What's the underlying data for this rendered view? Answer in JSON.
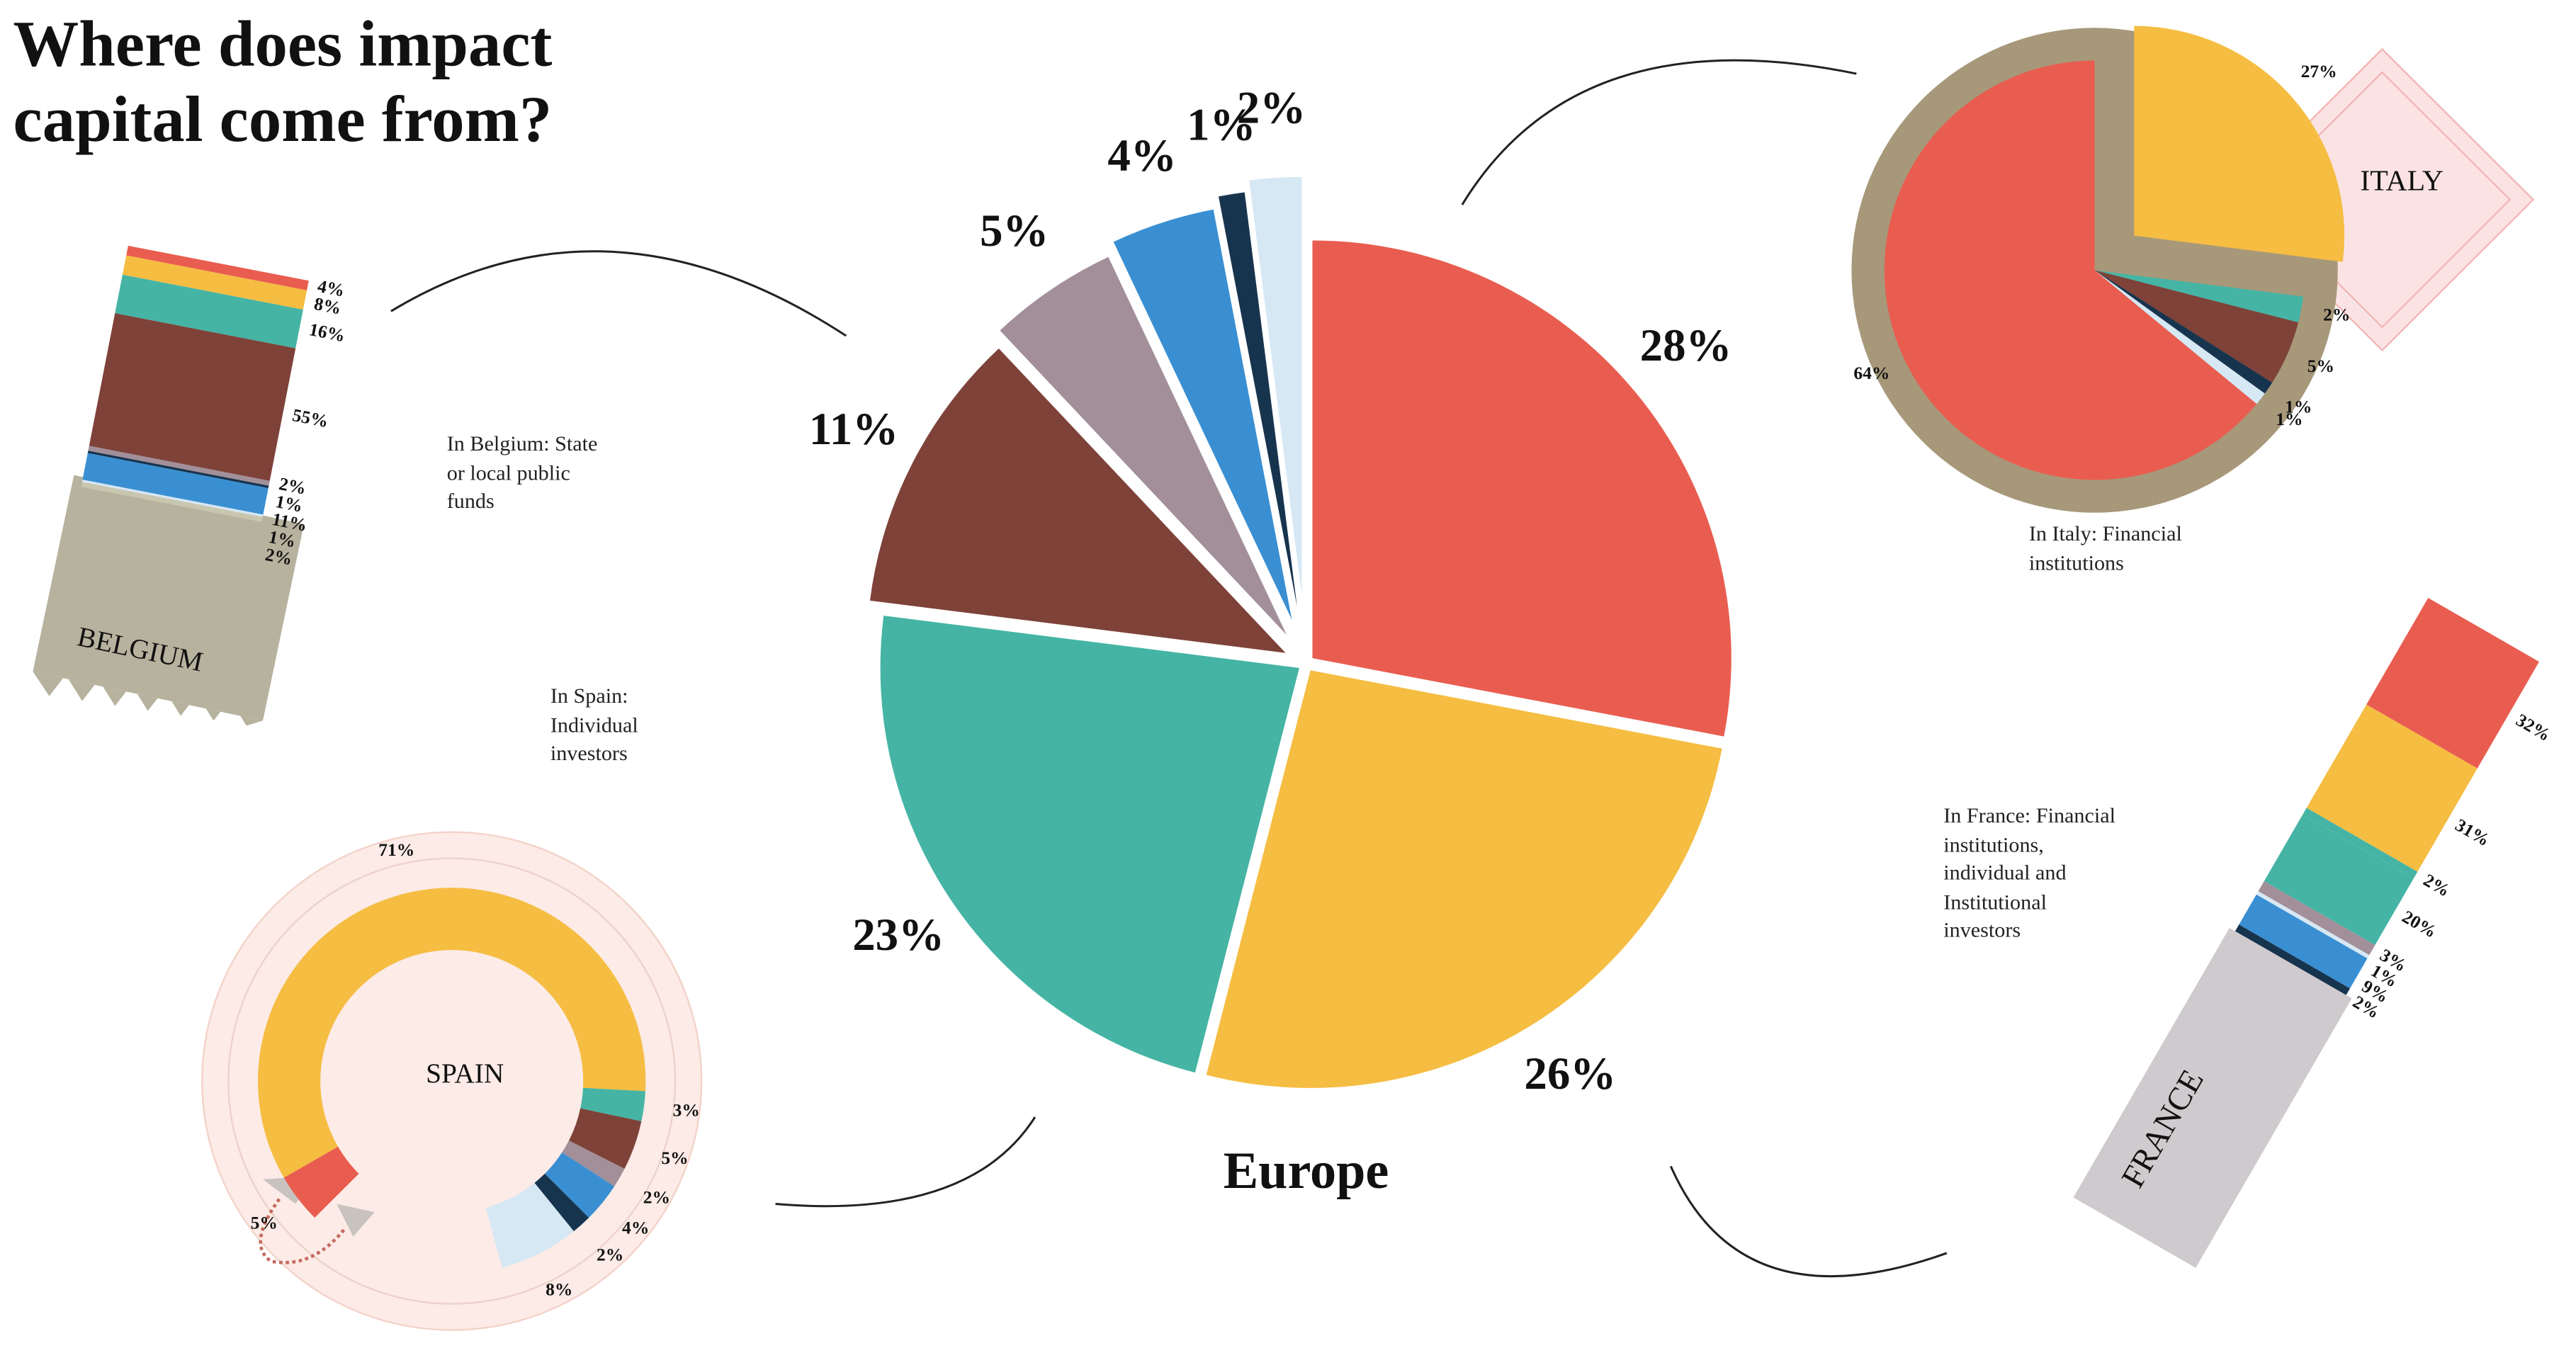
{
  "title": "Where does impact capital come from?",
  "chart_data": [
    {
      "type": "pie",
      "title": "Europe",
      "values": [
        28,
        26,
        23,
        11,
        5,
        4,
        1,
        2
      ],
      "value_labels": [
        "28%",
        "26%",
        "23%",
        "11%",
        "5%",
        "4%",
        "1%",
        "2%"
      ],
      "colors": [
        "#e95d50",
        "#f5bd42",
        "#45b4a4",
        "#7e4239",
        "#a28f99",
        "#3a8fd2",
        "#17344f",
        "#d6e8f4"
      ]
    },
    {
      "type": "stacked-bar",
      "title": "BELGIUM",
      "annotation": "In Belgium: State or local public funds",
      "values": [
        4,
        8,
        16,
        55,
        2,
        1,
        11,
        1,
        2
      ],
      "value_labels": [
        "4%",
        "8%",
        "16%",
        "55%",
        "2%",
        "1%",
        "11%",
        "1%",
        "2%"
      ],
      "colors": [
        "#e95d50",
        "#f5bd42",
        "#45b4a4",
        "#7e4239",
        "#a28f99",
        "#17344f",
        "#3a8fd2",
        "#d6e8f4",
        "#c9c6b0"
      ]
    },
    {
      "type": "pie",
      "title": "ITALY",
      "annotation": "In Italy: Financial institutions",
      "values": [
        64,
        27,
        2,
        5,
        1,
        1
      ],
      "value_labels": [
        "64%",
        "27%",
        "2%",
        "5%",
        "1%",
        "1%"
      ],
      "colors": [
        "#e95d50",
        "#f5bd42",
        "#45b4a4",
        "#7e4239",
        "#17344f",
        "#d6e8f4"
      ]
    },
    {
      "type": "donut",
      "title": "SPAIN",
      "annotation": "In Spain: Individual investors",
      "values": [
        5,
        71,
        3,
        5,
        2,
        4,
        2,
        8
      ],
      "value_labels": [
        "5%",
        "71%",
        "3%",
        "5%",
        "2%",
        "4%",
        "2%",
        "8%"
      ],
      "colors": [
        "#e95d50",
        "#f5bd42",
        "#45b4a4",
        "#7e4239",
        "#a28f99",
        "#3a8fd2",
        "#17344f",
        "#d6e8f4"
      ]
    },
    {
      "type": "stacked-bar",
      "title": "FRANCE",
      "annotation": "In France: Financial institutions, individual and Institutional investors",
      "values": [
        32,
        31,
        2,
        20,
        3,
        1,
        9,
        2
      ],
      "value_labels": [
        "32%",
        "31%",
        "2%",
        "20%",
        "3%",
        "1%",
        "9%",
        "2%"
      ],
      "colors": [
        "#e95d50",
        "#f5bd42",
        "#45b4a4",
        "#45b4a4",
        "#a28f99",
        "#d6e8f4",
        "#3a8fd2",
        "#17344f"
      ]
    }
  ]
}
